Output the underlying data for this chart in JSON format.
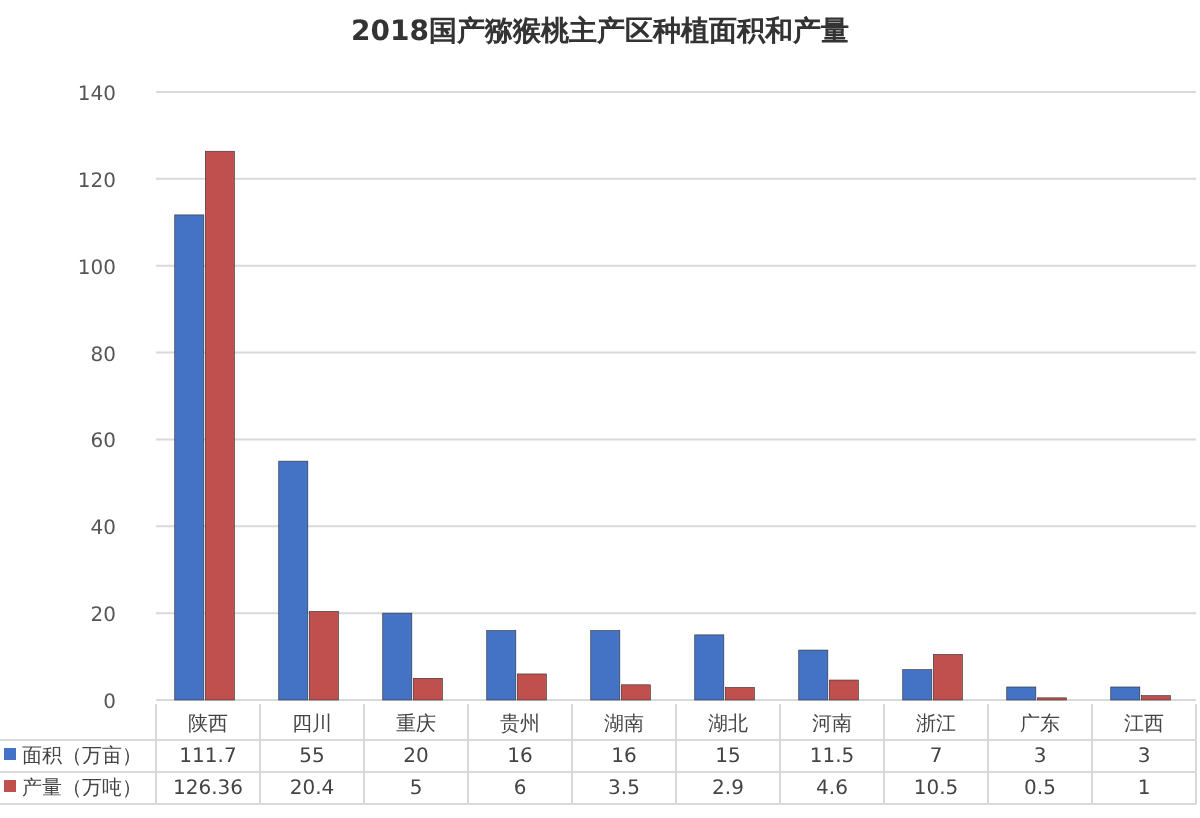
{
  "chart_data": {
    "type": "bar",
    "title": "2018国产猕猴桃主产区种植面积和产量",
    "categories": [
      "陕西",
      "四川",
      "重庆",
      "贵州",
      "湖南",
      "湖北",
      "河南",
      "浙江",
      "广东",
      "江西"
    ],
    "series": [
      {
        "name": "面积（万亩）",
        "color": "#4472c4",
        "values": [
          111.7,
          55,
          20,
          16,
          16,
          15,
          11.5,
          7,
          3,
          3
        ]
      },
      {
        "name": "产量（万吨）",
        "color": "#c0504d",
        "values": [
          126.36,
          20.4,
          5,
          6,
          3.5,
          2.9,
          4.6,
          10.5,
          0.5,
          1
        ]
      }
    ],
    "ylim": [
      0,
      140
    ],
    "yticks": [
      0,
      20,
      40,
      60,
      80,
      100,
      120,
      140
    ],
    "grid": "y",
    "data_labels": true,
    "legend": "bottom"
  }
}
